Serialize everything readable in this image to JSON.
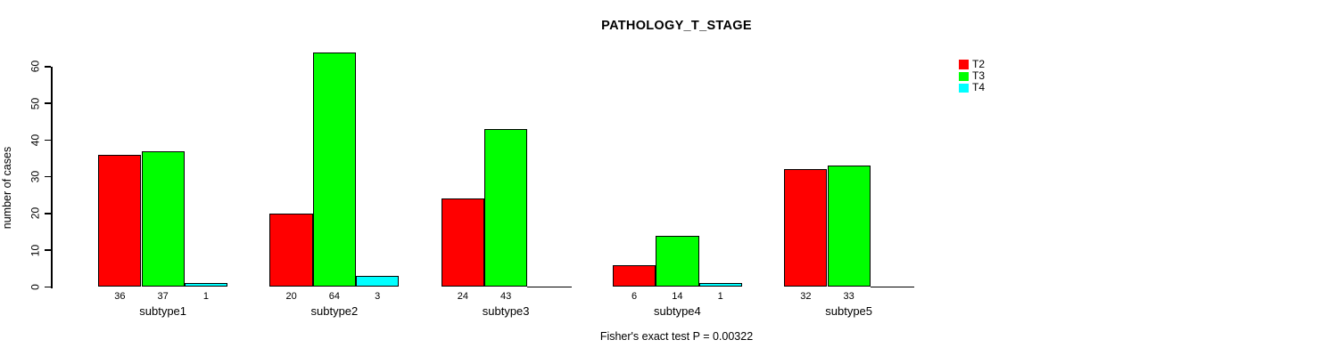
{
  "chart_data": {
    "type": "bar",
    "title": "PATHOLOGY_T_STAGE",
    "ylabel": "number of cases",
    "xlabel": "",
    "categories": [
      "subtype1",
      "subtype2",
      "subtype3",
      "subtype4",
      "subtype5"
    ],
    "series": [
      {
        "name": "T2",
        "color": "#ff0000",
        "values": [
          36,
          20,
          24,
          6,
          32
        ]
      },
      {
        "name": "T3",
        "color": "#00ff00",
        "values": [
          37,
          64,
          43,
          14,
          33
        ]
      },
      {
        "name": "T4",
        "color": "#00ffff",
        "values": [
          1,
          3,
          0,
          1,
          0
        ]
      }
    ],
    "yticks": [
      0,
      10,
      20,
      30,
      40,
      50,
      60
    ],
    "ylim": [
      0,
      64
    ],
    "grid": false,
    "bar_value_labels_shown": true,
    "zero_values_drawn_as_baseline": true,
    "legend": {
      "position": "top-right",
      "entries": [
        "T2",
        "T3",
        "T4"
      ],
      "border": false
    },
    "annotation": "Fisher's exact test P = 0.00322",
    "axis_color": "#000000",
    "background_color": "#ffffff"
  }
}
